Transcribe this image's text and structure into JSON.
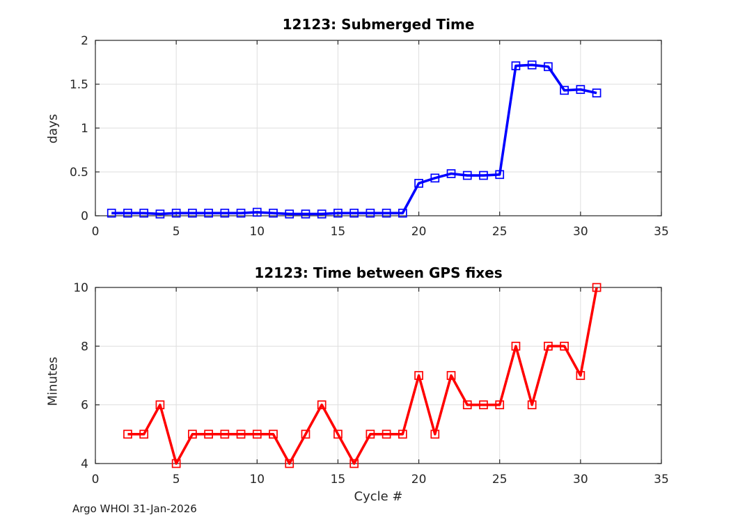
{
  "figure": {
    "footer_text": "Argo WHOI 31-Jan-2026",
    "background_color": "#FFFFFF",
    "axis_color": "#262626",
    "grid_color": "#DEDEDE",
    "tick_label_color": "#262626"
  },
  "chart_data": [
    {
      "type": "line",
      "title": "12123: Submerged Time",
      "ylabel": "days",
      "xlabel": "",
      "line_color": "#0000FF",
      "marker": "open-square",
      "grid": true,
      "legend": "none",
      "xlim": [
        0,
        35
      ],
      "ylim": [
        0,
        2
      ],
      "xticks": [
        0,
        5,
        10,
        15,
        20,
        25,
        30,
        35
      ],
      "yticks": [
        0,
        0.5,
        1,
        1.5,
        2
      ],
      "x": [
        1,
        2,
        3,
        4,
        5,
        6,
        7,
        8,
        9,
        10,
        11,
        12,
        13,
        14,
        15,
        16,
        17,
        18,
        19,
        20,
        21,
        22,
        23,
        24,
        25,
        26,
        27,
        28,
        29,
        30,
        31
      ],
      "y": [
        0.03,
        0.03,
        0.03,
        0.02,
        0.03,
        0.03,
        0.03,
        0.03,
        0.03,
        0.04,
        0.03,
        0.02,
        0.02,
        0.02,
        0.03,
        0.03,
        0.03,
        0.03,
        0.03,
        0.37,
        0.43,
        0.48,
        0.46,
        0.46,
        0.47,
        1.71,
        1.72,
        1.7,
        1.43,
        1.44,
        1.4
      ]
    },
    {
      "type": "line",
      "title": "12123: Time between GPS fixes",
      "ylabel": "Minutes",
      "xlabel": "Cycle #",
      "line_color": "#FF0000",
      "marker": "open-square",
      "grid": true,
      "legend": "none",
      "xlim": [
        0,
        35
      ],
      "ylim": [
        4,
        10
      ],
      "xticks": [
        0,
        5,
        10,
        15,
        20,
        25,
        30,
        35
      ],
      "yticks": [
        4,
        6,
        8,
        10
      ],
      "x": [
        2,
        3,
        4,
        5,
        6,
        7,
        8,
        9,
        10,
        11,
        12,
        13,
        14,
        15,
        16,
        17,
        18,
        19,
        20,
        21,
        22,
        23,
        24,
        25,
        26,
        27,
        28,
        29,
        30,
        31
      ],
      "y": [
        5,
        5,
        6,
        4,
        5,
        5,
        5,
        5,
        5,
        5,
        4,
        5,
        6,
        5,
        4,
        5,
        5,
        5,
        7,
        5,
        7,
        6,
        6,
        6,
        8,
        6,
        8,
        8,
        7,
        10
      ]
    }
  ]
}
